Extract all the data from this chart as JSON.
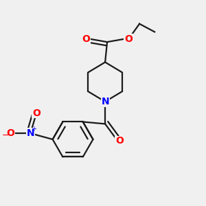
{
  "bg": "#f0f0f0",
  "bond_color": "#1a1a1a",
  "N_color": "#0000ff",
  "O_color": "#ff0000",
  "lw": 1.6,
  "dbo": 0.018,
  "figsize": [
    3.0,
    3.0
  ],
  "dpi": 100,
  "xlim": [
    0,
    10
  ],
  "ylim": [
    0,
    10
  ]
}
